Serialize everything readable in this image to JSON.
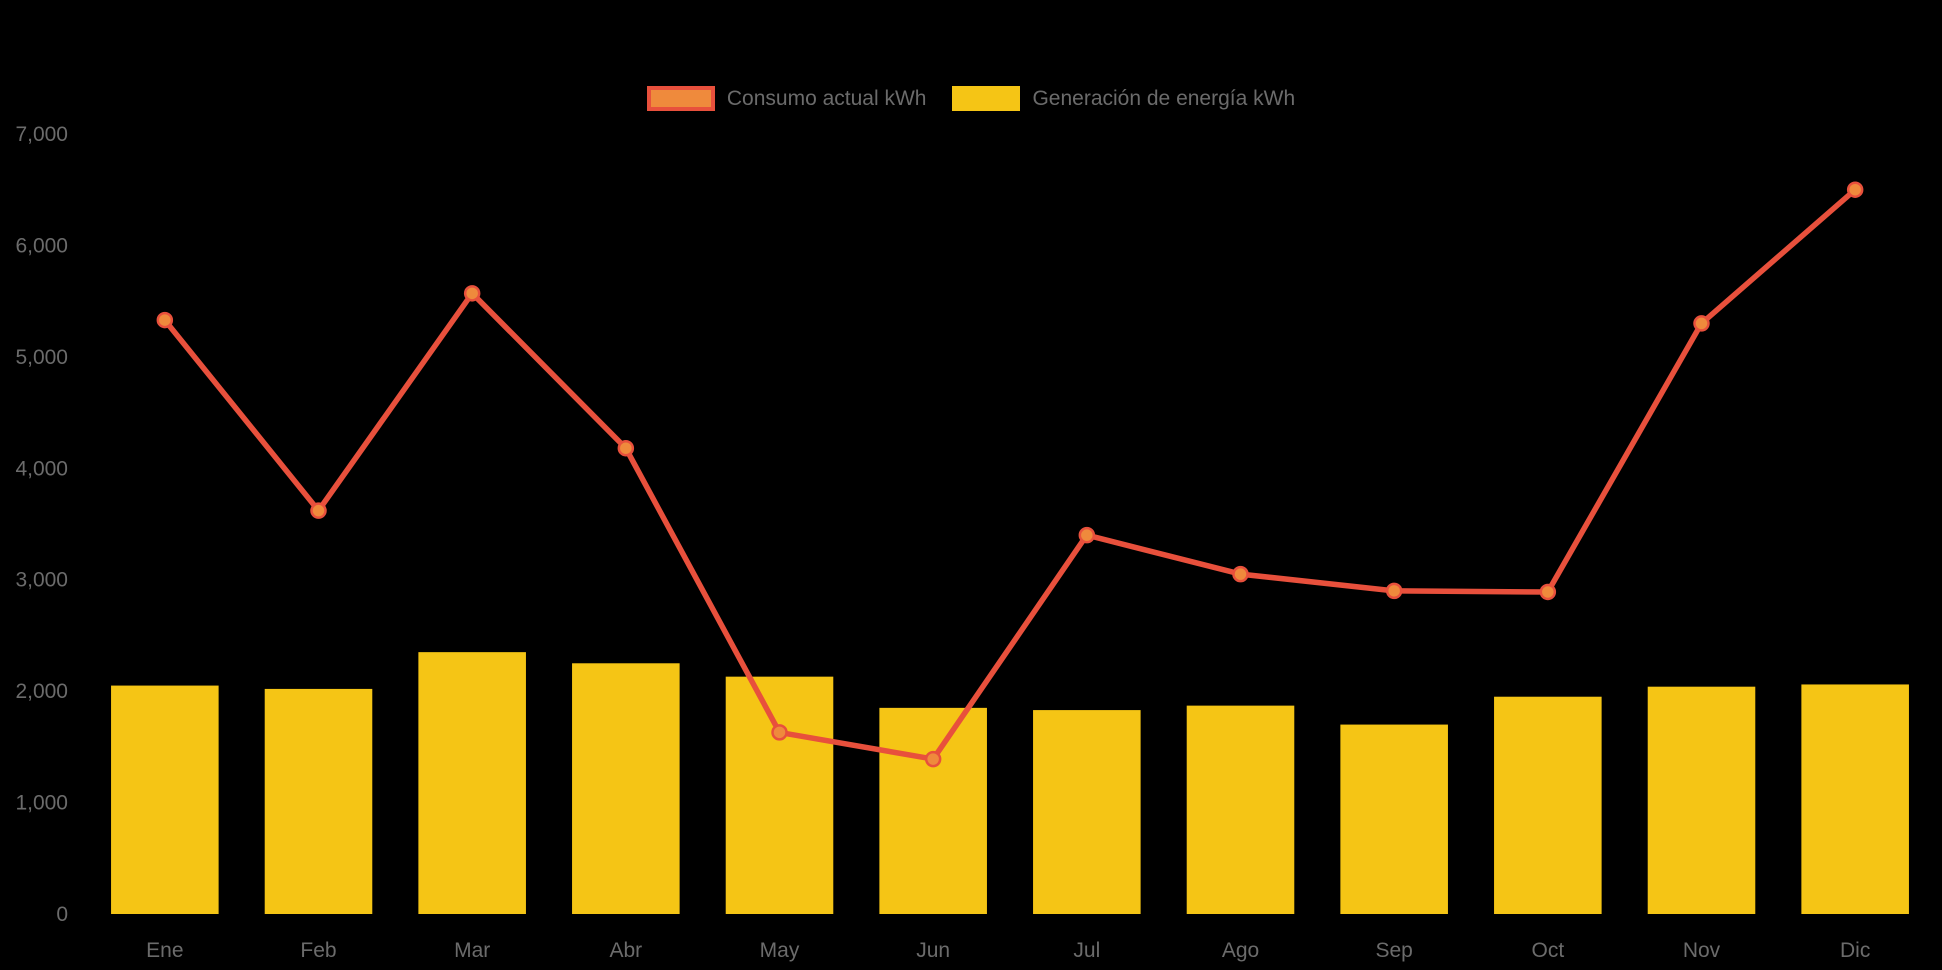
{
  "chart_data": {
    "type": "bar",
    "subtype": "combo-bar-line",
    "title": "",
    "categories": [
      "Ene",
      "Feb",
      "Mar",
      "Abr",
      "May",
      "Jun",
      "Jul",
      "Ago",
      "Sep",
      "Oct",
      "Nov",
      "Dic"
    ],
    "series": [
      {
        "name": "Consumo actual kWh",
        "type": "line",
        "color": "#E8503C",
        "point_fill": "#EF8A3C",
        "values": [
          5330,
          3620,
          5570,
          4180,
          1630,
          1390,
          3400,
          3050,
          2900,
          2890,
          5300,
          6500
        ]
      },
      {
        "name": "Generación de energía kWh",
        "type": "bar",
        "color": "#F5C515",
        "values": [
          2050,
          2020,
          2350,
          2250,
          2130,
          1850,
          1830,
          1870,
          1700,
          1950,
          2040,
          2060
        ]
      }
    ],
    "ylim": [
      0,
      7000
    ],
    "yticks": [
      0,
      1000,
      2000,
      3000,
      4000,
      5000,
      6000,
      7000
    ],
    "ytick_labels": [
      "0",
      "1,000",
      "2,000",
      "3,000",
      "4,000",
      "5,000",
      "6,000",
      "7,000"
    ],
    "xlabel": "",
    "ylabel": "",
    "grid": false,
    "legend_position": "top",
    "background": "#000000",
    "text_color": "#6B6B6B"
  }
}
